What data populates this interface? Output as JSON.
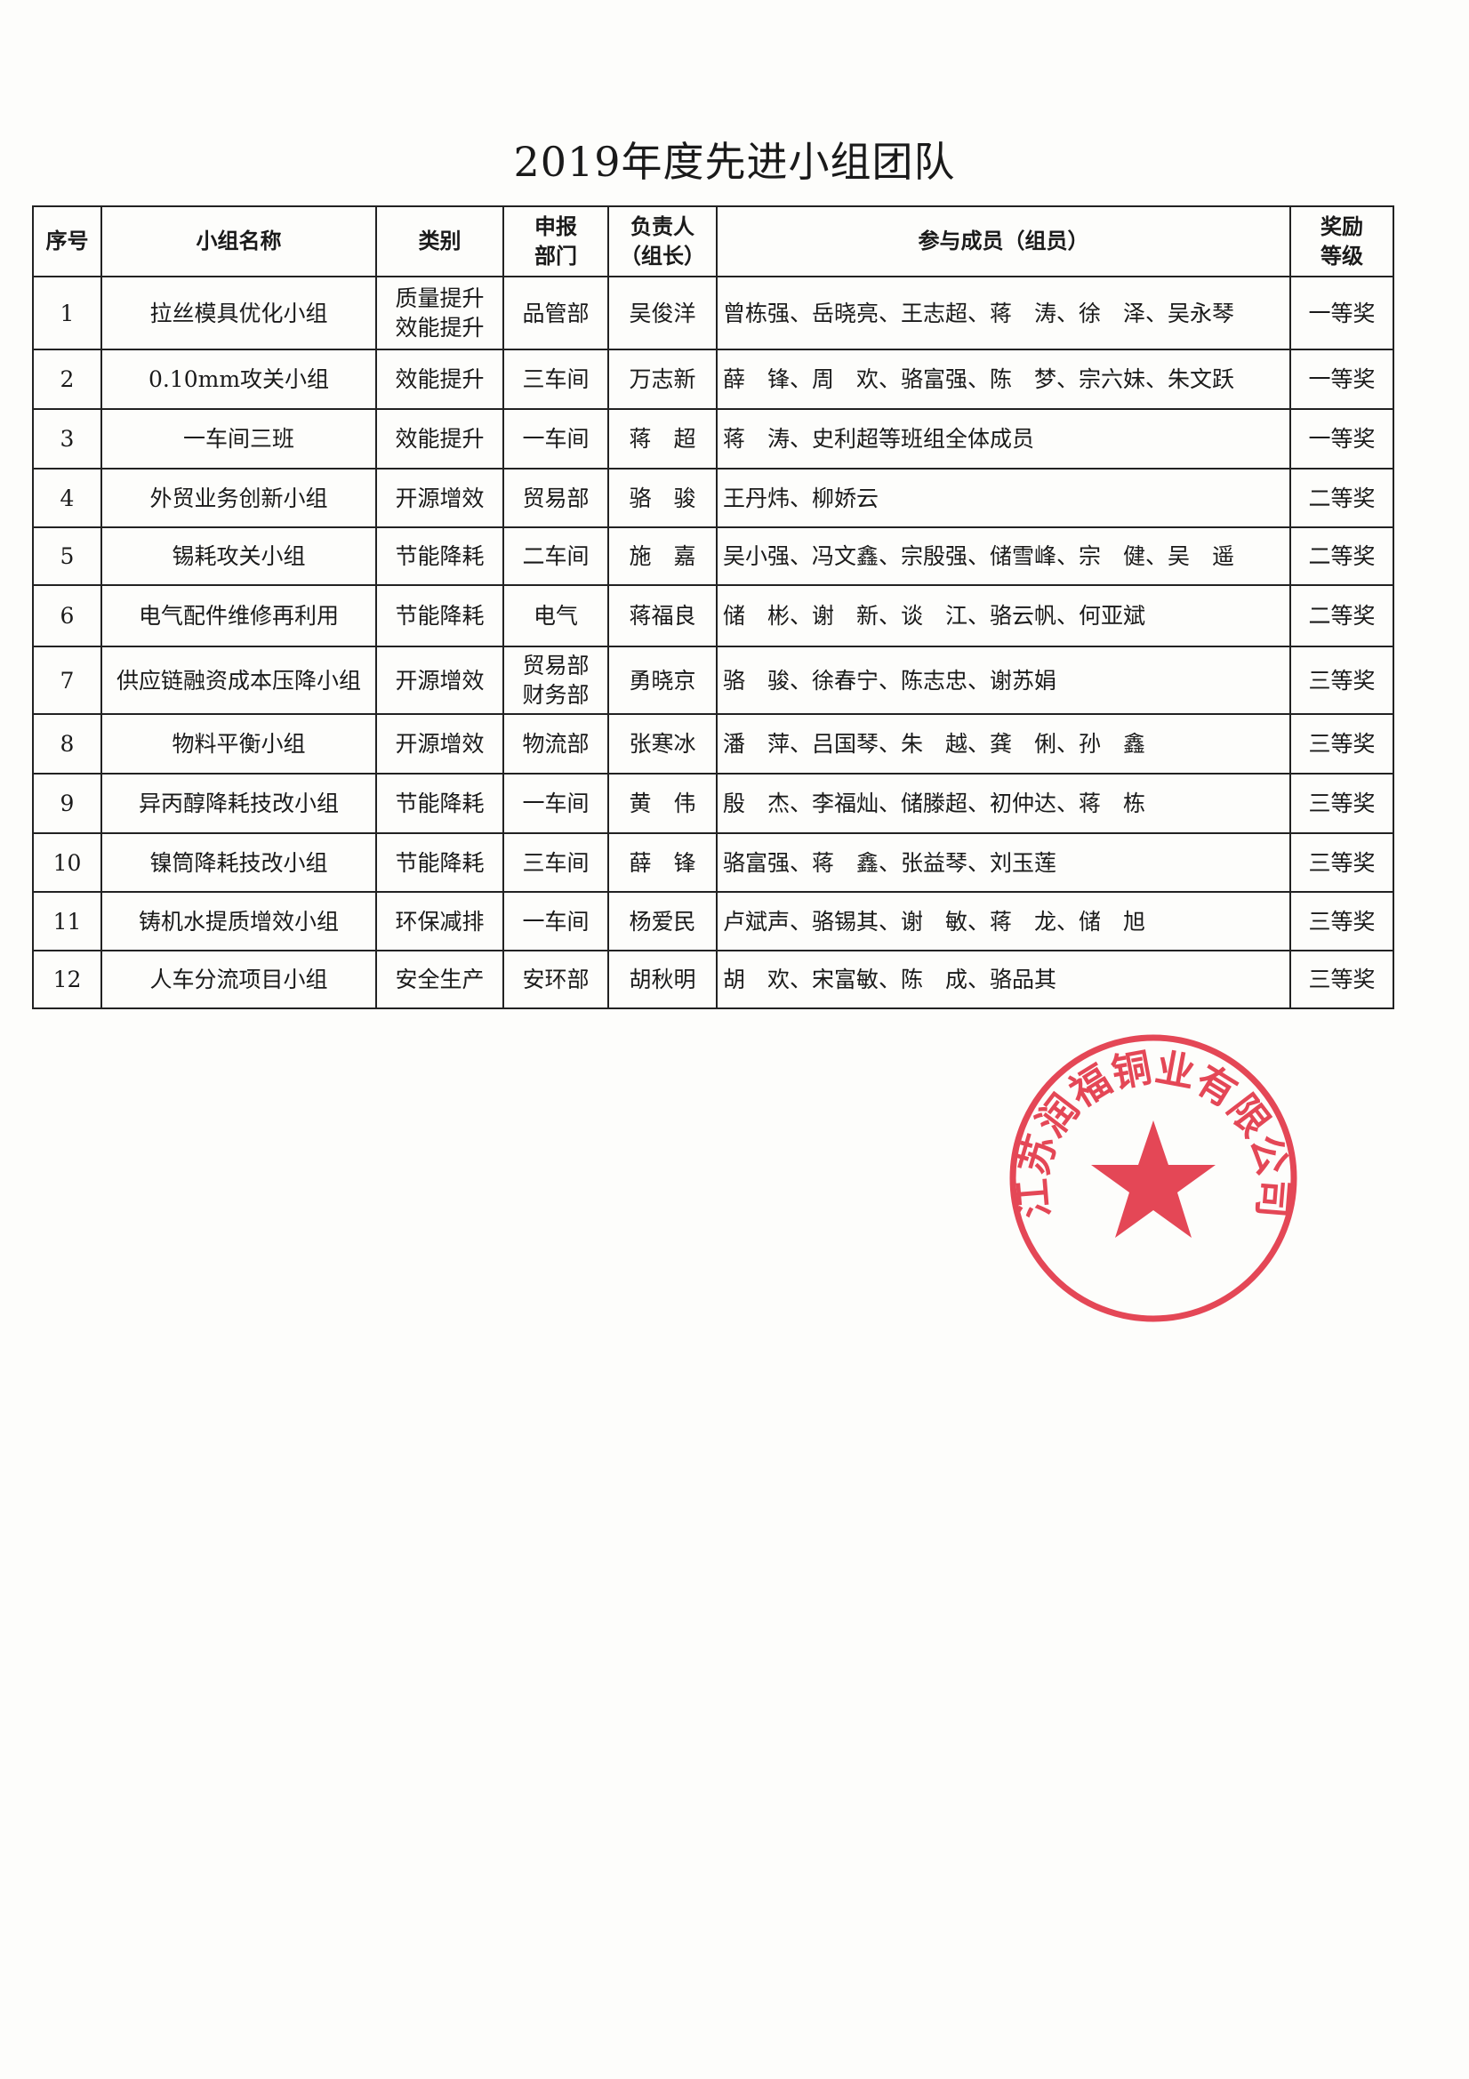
{
  "title": "2019年度先进小组团队",
  "headers": {
    "index": "序号",
    "name": "小组名称",
    "category": "类别",
    "dept_line1": "申报",
    "dept_line2": "部门",
    "leader_line1": "负责人",
    "leader_line2": "（组长）",
    "members": "参与成员（组员）",
    "award_line1": "奖励",
    "award_line2": "等级"
  },
  "rows": [
    {
      "index": "1",
      "name": "拉丝模具优化小组",
      "category": [
        "质量提升",
        "效能提升"
      ],
      "dept": [
        "品管部"
      ],
      "leader": "吴俊洋",
      "members": "曾栋强、岳晓亮、王志超、蒋　涛、徐　泽、吴永琴",
      "award": "一等奖"
    },
    {
      "index": "2",
      "name": "0.10mm攻关小组",
      "category": [
        "效能提升"
      ],
      "dept": [
        "三车间"
      ],
      "leader": "万志新",
      "members": "薛　锋、周　欢、骆富强、陈　梦、宗六妹、朱文跃",
      "award": "一等奖"
    },
    {
      "index": "3",
      "name": "一车间三班",
      "category": [
        "效能提升"
      ],
      "dept": [
        "一车间"
      ],
      "leader": "蒋　超",
      "members": "蒋　涛、史利超等班组全体成员",
      "award": "一等奖"
    },
    {
      "index": "4",
      "name": "外贸业务创新小组",
      "category": [
        "开源增效"
      ],
      "dept": [
        "贸易部"
      ],
      "leader": "骆　骏",
      "members": "王丹炜、柳娇云",
      "award": "二等奖"
    },
    {
      "index": "5",
      "name": "锡耗攻关小组",
      "category": [
        "节能降耗"
      ],
      "dept": [
        "二车间"
      ],
      "leader": "施　嘉",
      "members": "吴小强、冯文鑫、宗殷强、储雪峰、宗　健、吴　遥",
      "award": "二等奖"
    },
    {
      "index": "6",
      "name": "电气配件维修再利用",
      "category": [
        "节能降耗"
      ],
      "dept": [
        "电气"
      ],
      "leader": "蒋福良",
      "members": "储　彬、谢　新、谈　江、骆云帆、何亚斌",
      "award": "二等奖"
    },
    {
      "index": "7",
      "name": "供应链融资成本压降小组",
      "category": [
        "开源增效"
      ],
      "dept": [
        "贸易部",
        "财务部"
      ],
      "leader": "勇晓京",
      "members": "骆　骏、徐春宁、陈志忠、谢苏娟",
      "award": "三等奖"
    },
    {
      "index": "8",
      "name": "物料平衡小组",
      "category": [
        "开源增效"
      ],
      "dept": [
        "物流部"
      ],
      "leader": "张寒冰",
      "members": "潘　萍、吕国琴、朱　越、龚　俐、孙　鑫",
      "award": "三等奖"
    },
    {
      "index": "9",
      "name": "异丙醇降耗技改小组",
      "category": [
        "节能降耗"
      ],
      "dept": [
        "一车间"
      ],
      "leader": "黄　伟",
      "members": "殷　杰、李福灿、储滕超、初仲达、蒋　栋",
      "award": "三等奖"
    },
    {
      "index": "10",
      "name": "镍筒降耗技改小组",
      "category": [
        "节能降耗"
      ],
      "dept": [
        "三车间"
      ],
      "leader": "薛　锋",
      "members": "骆富强、蒋　鑫、张益琴、刘玉莲",
      "award": "三等奖"
    },
    {
      "index": "11",
      "name": "铸机水提质增效小组",
      "category": [
        "环保减排"
      ],
      "dept": [
        "一车间"
      ],
      "leader": "杨爱民",
      "members": "卢斌声、骆锡其、谢　敏、蒋　龙、储　旭",
      "award": "三等奖"
    },
    {
      "index": "12",
      "name": "人车分流项目小组",
      "category": [
        "安全生产"
      ],
      "dept": [
        "安环部"
      ],
      "leader": "胡秋明",
      "members": "胡　欢、宋富敏、陈　成、骆品其",
      "award": "三等奖"
    }
  ],
  "stamp": {
    "text": "江苏润福铜业有限公司",
    "color": "#e0283a",
    "icon": "star-icon"
  }
}
